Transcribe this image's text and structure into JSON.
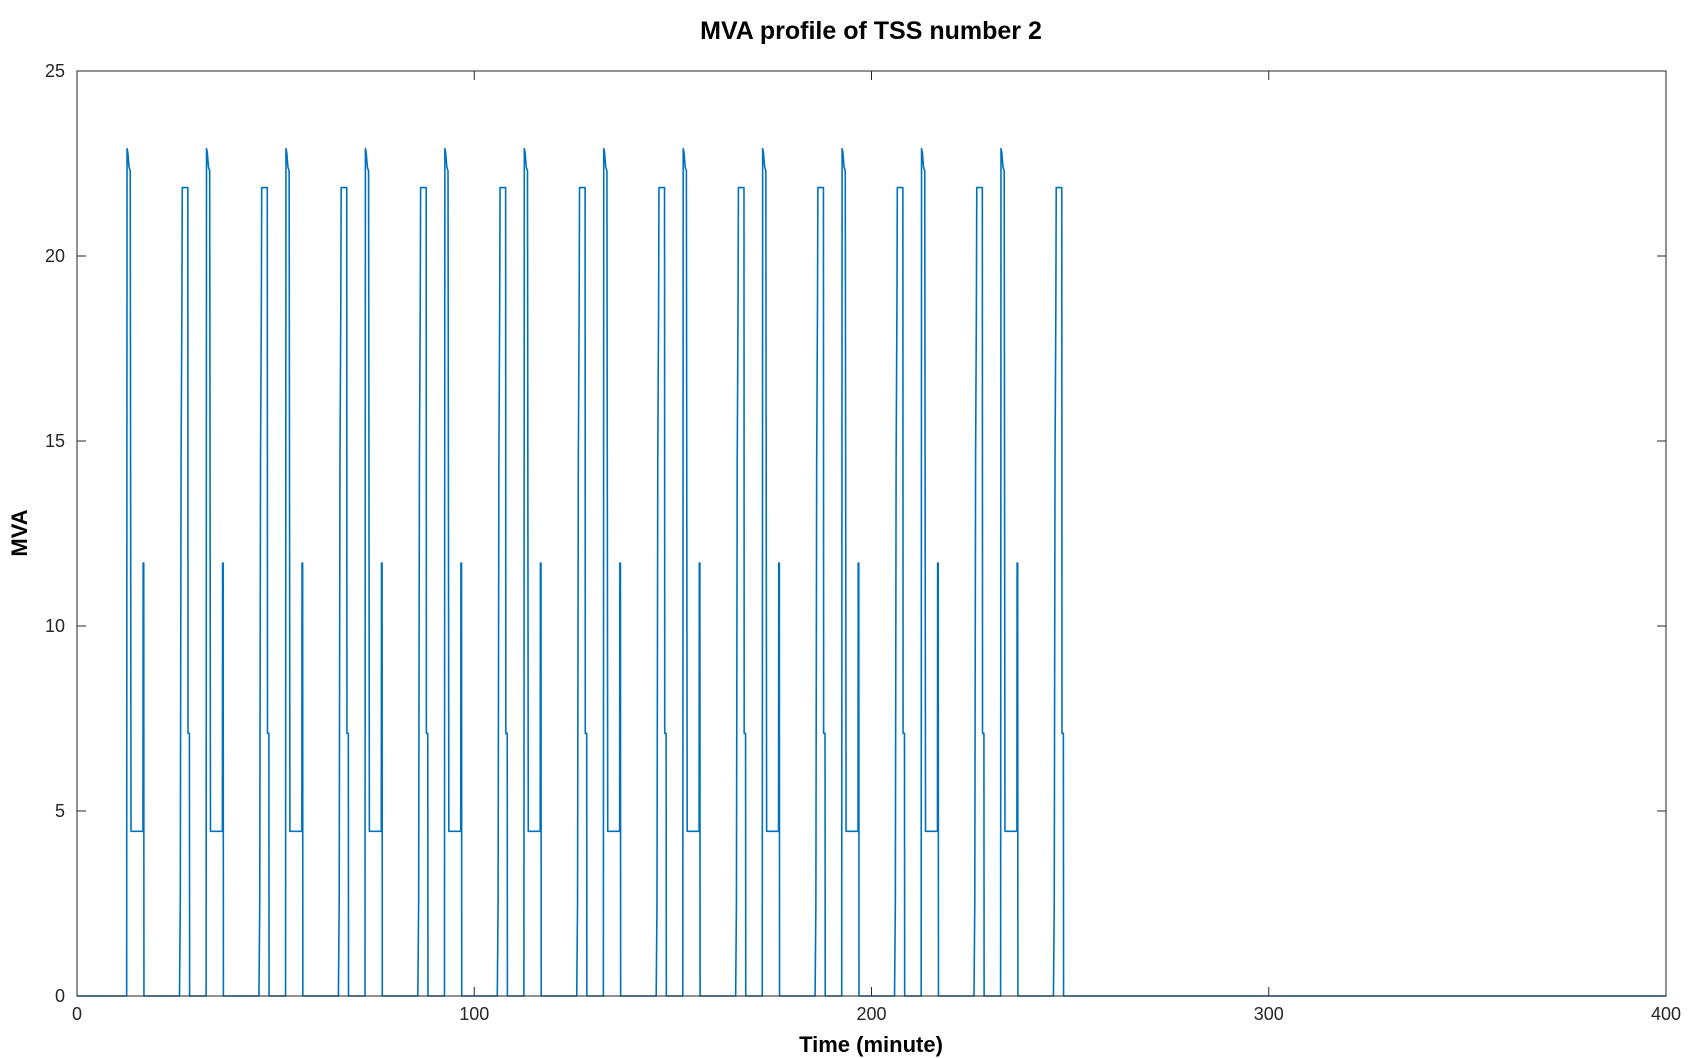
{
  "chart_data": {
    "type": "line",
    "title": "MVA profile of TSS number 2",
    "xlabel": "Time (minute)",
    "ylabel": "MVA",
    "xlim": [
      0,
      400
    ],
    "ylim": [
      0,
      25
    ],
    "xticks": [
      0,
      100,
      200,
      300,
      400
    ],
    "yticks": [
      0,
      5,
      10,
      15,
      20,
      25
    ],
    "grid": false,
    "legend": "none",
    "line_color": "#0072BD",
    "period_minutes": 20,
    "cycle_starts": [
      12.5,
      32.5,
      52.5,
      72.5,
      92.5,
      112.5,
      132.5,
      152.5,
      172.5,
      192.5,
      212.5,
      232.5
    ],
    "last_activity_end": 248,
    "levels": {
      "peak_a": 22.9,
      "plateau_b": 21.85,
      "mid_level": 4.45,
      "spike_level": 11.7,
      "baseline": 0
    },
    "series": [
      {
        "cycle_profile": [
          [
            0,
            0
          ],
          [
            0.1,
            22.9
          ],
          [
            0.3,
            22.8
          ],
          [
            0.6,
            22.4
          ],
          [
            0.9,
            22.3
          ],
          [
            1.1,
            4.45
          ],
          [
            4.1,
            4.45
          ],
          [
            4.15,
            11.7
          ],
          [
            4.3,
            11.7
          ],
          [
            4.35,
            0
          ],
          [
            13.3,
            0
          ],
          [
            13.5,
            2.5
          ],
          [
            13.7,
            14.5
          ],
          [
            13.9,
            18.5
          ],
          [
            14.0,
            21.85
          ],
          [
            15.4,
            21.85
          ],
          [
            15.45,
            7.1
          ],
          [
            15.8,
            7.1
          ],
          [
            15.85,
            0
          ],
          [
            20,
            0
          ]
        ]
      }
    ]
  }
}
